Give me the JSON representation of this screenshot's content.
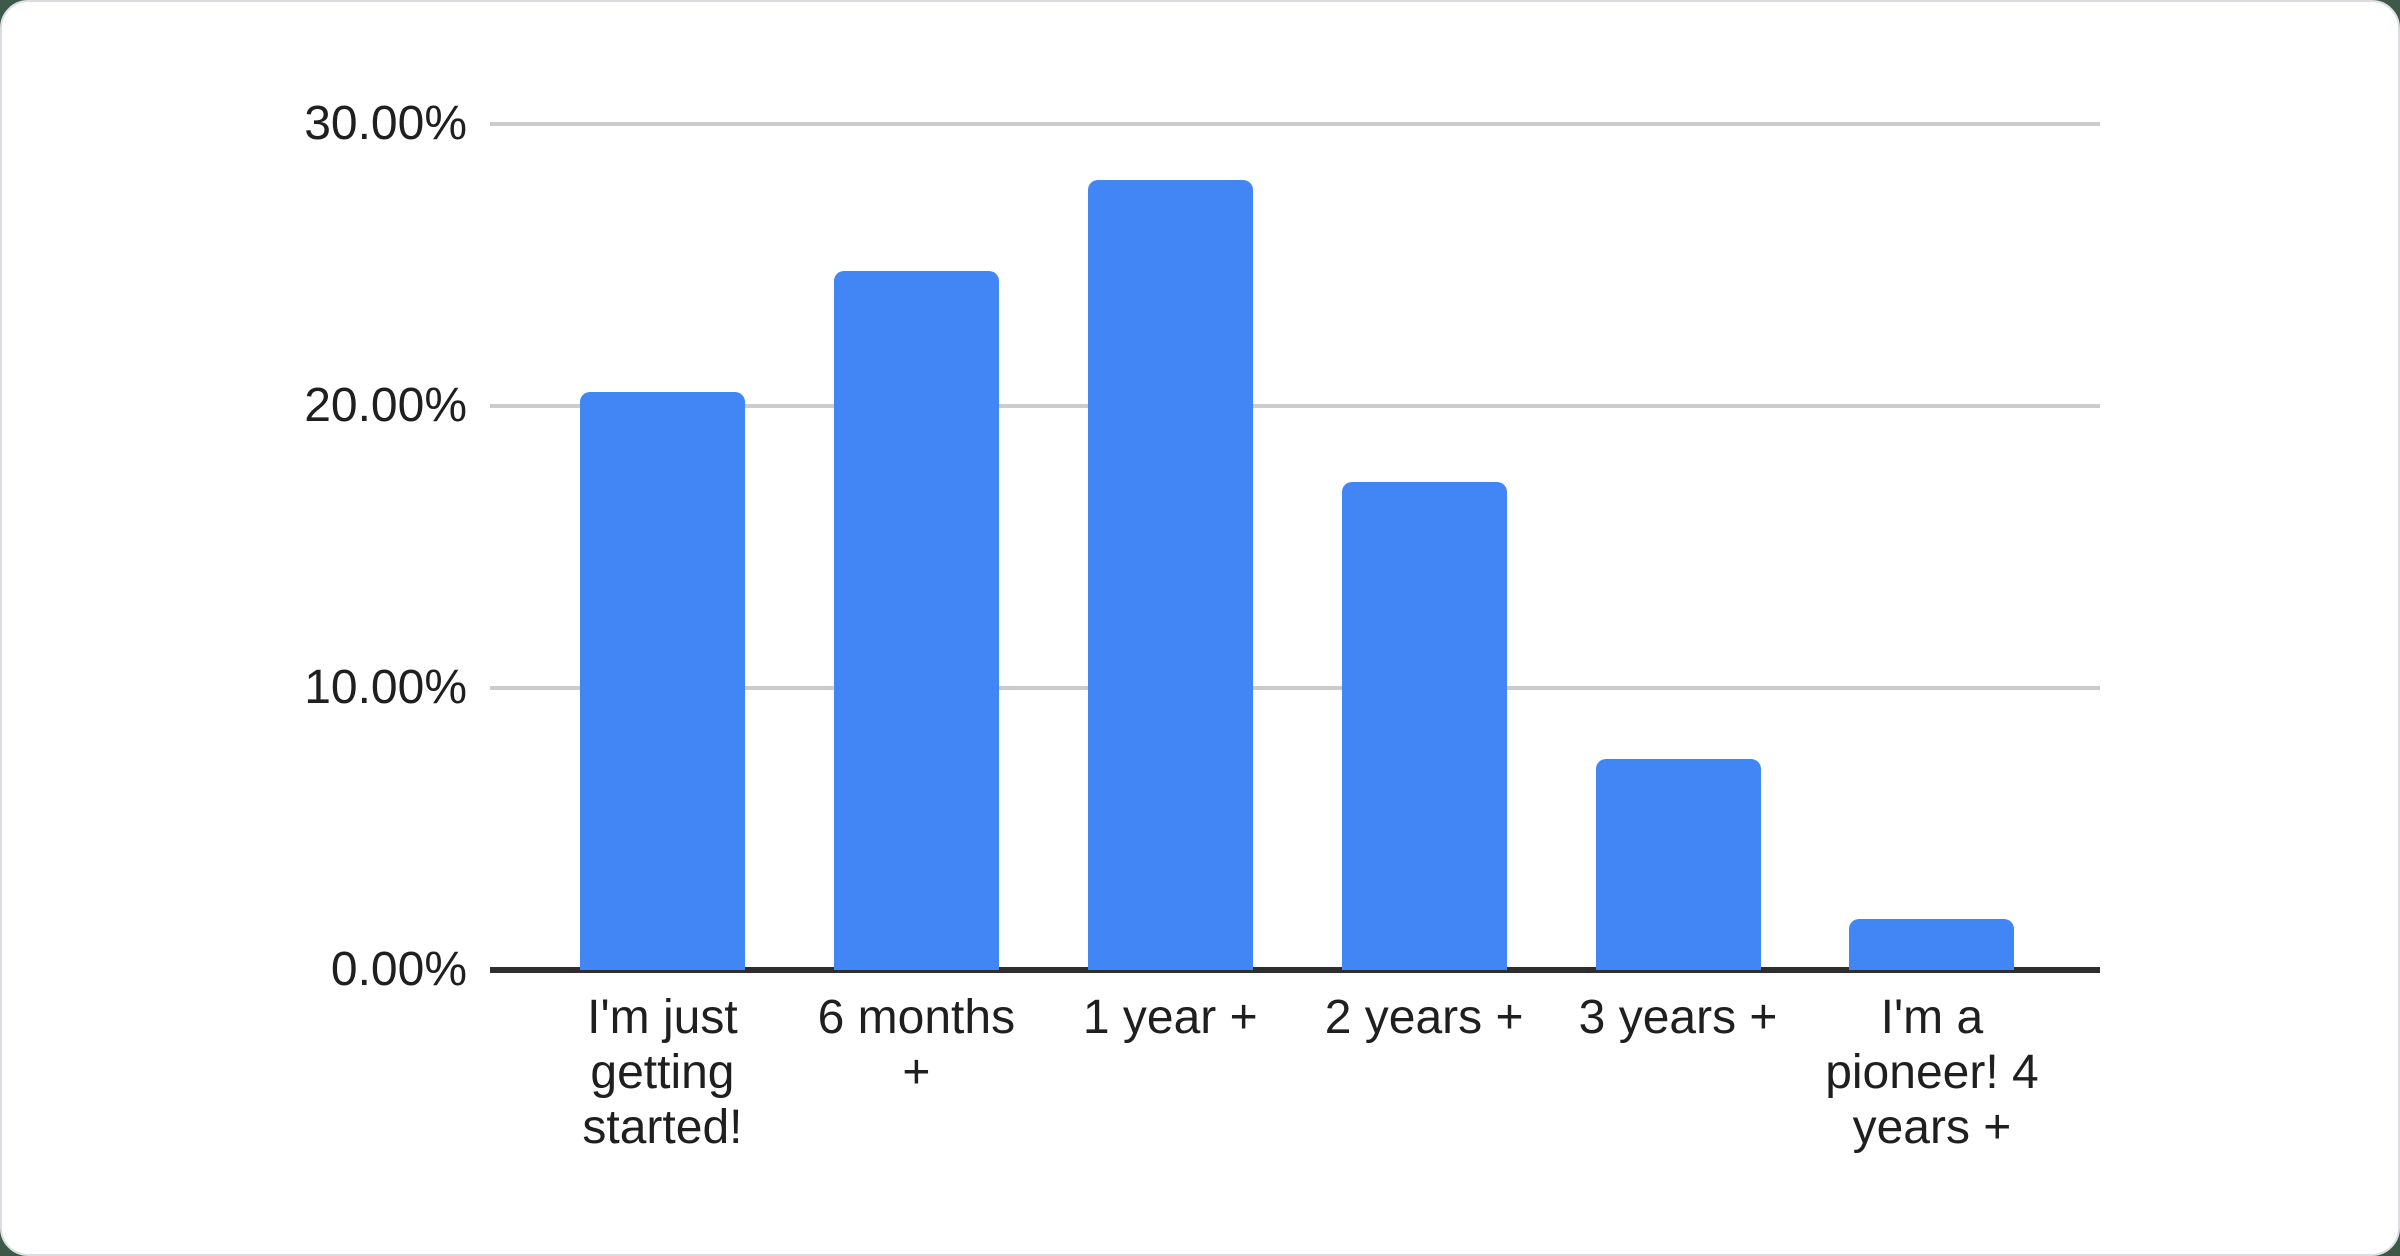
{
  "page": {
    "background_color": "#3d5948",
    "card_background": "#ffffff",
    "card_border_color": "#d9dde2"
  },
  "chart_data": {
    "type": "bar",
    "title": "",
    "xlabel": "",
    "ylabel": "",
    "categories": [
      "I'm just getting started!",
      "6 months +",
      "1 year +",
      "2 years +",
      "3 years +",
      "I'm a pioneer! 4 years +"
    ],
    "values": [
      20.5,
      24.8,
      28.0,
      17.3,
      7.5,
      1.8
    ],
    "value_unit": "%",
    "ylim": [
      0,
      30
    ],
    "y_ticks": [
      {
        "label": "0.00%",
        "value": 0
      },
      {
        "label": "10.00%",
        "value": 10
      },
      {
        "label": "20.00%",
        "value": 20
      },
      {
        "label": "30.00%",
        "value": 30
      }
    ],
    "grid": true,
    "legend": "none",
    "bar_color": "#4285f4",
    "gridline_color": "#cccccc",
    "axis_color": "#2e2e2e",
    "label_color": "#1f1f1f"
  }
}
